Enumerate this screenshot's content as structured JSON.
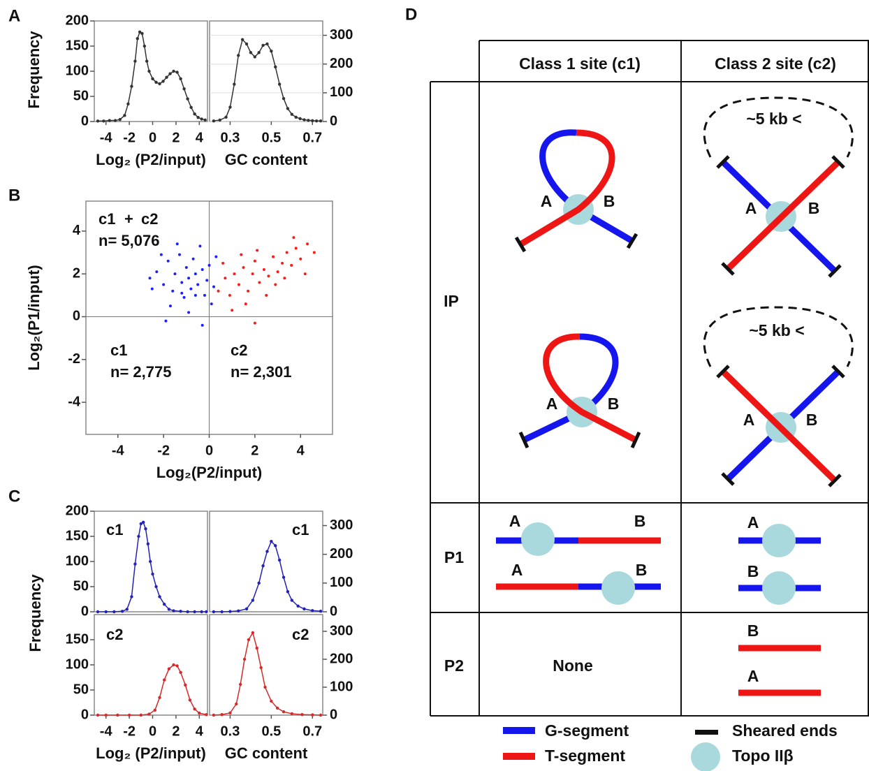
{
  "chart_data": [
    {
      "type": "line",
      "panel": "A",
      "ylabel": "Frequency",
      "xlabel": "Log₂ (P2/input)",
      "color": "#333333",
      "xlim": [
        -5,
        4.7
      ],
      "ylim": [
        0,
        200
      ],
      "xticks": [
        -4,
        -2,
        0,
        2,
        4
      ],
      "yticks": [
        0,
        50,
        100,
        150,
        200
      ],
      "series": [
        {
          "color": "#333333",
          "x": [
            -4.7,
            -4.2,
            -3.7,
            -3.2,
            -2.8,
            -2.4,
            -2.1,
            -1.8,
            -1.5,
            -1.3,
            -1.1,
            -0.9,
            -0.7,
            -0.5,
            -0.3,
            0,
            0.3,
            0.6,
            0.9,
            1.2,
            1.5,
            1.8,
            2.1,
            2.4,
            2.7,
            3.0,
            3.3,
            3.6,
            3.9,
            4.2,
            4.5
          ],
          "values": [
            1,
            1,
            2,
            2,
            4,
            12,
            35,
            70,
            120,
            165,
            178,
            175,
            150,
            120,
            100,
            85,
            78,
            75,
            80,
            88,
            95,
            100,
            98,
            85,
            65,
            45,
            28,
            15,
            8,
            5,
            3
          ]
        }
      ]
    },
    {
      "type": "line",
      "xlabel": "GC content",
      "grid": true,
      "xlim": [
        0.2,
        0.75
      ],
      "ylim": [
        0,
        350
      ],
      "xticks": [
        0.3,
        0.5,
        0.7
      ],
      "yticks": [
        0,
        100,
        200,
        300
      ],
      "series": [
        {
          "color": "#333333",
          "x": [
            0.22,
            0.25,
            0.28,
            0.3,
            0.32,
            0.34,
            0.36,
            0.38,
            0.4,
            0.42,
            0.44,
            0.46,
            0.48,
            0.5,
            0.52,
            0.54,
            0.56,
            0.58,
            0.6,
            0.62,
            0.64,
            0.66,
            0.68,
            0.7,
            0.72,
            0.74
          ],
          "values": [
            2,
            5,
            15,
            50,
            130,
            230,
            285,
            270,
            240,
            225,
            240,
            265,
            270,
            245,
            190,
            130,
            80,
            45,
            25,
            15,
            10,
            6,
            4,
            3,
            2,
            2
          ]
        }
      ]
    },
    {
      "type": "scatter",
      "panel": "B",
      "xlabel": "Log₂(P2/input)",
      "ylabel": "Log₂(P1/input)",
      "xlim": [
        -5.4,
        5.4
      ],
      "ylim": [
        -5.5,
        5.4
      ],
      "xticks": [
        -4,
        -2,
        0,
        2,
        4
      ],
      "yticks": [
        -4,
        -2,
        0,
        2,
        4
      ],
      "annotations": [
        {
          "text": "c1",
          "color": "#1a1aff"
        },
        {
          "text": "+",
          "color": "#111111"
        },
        {
          "text": "c2",
          "color": "#ee1c1c"
        },
        {
          "text": "n= 5,076",
          "color": "#111111"
        },
        {
          "text": "c1",
          "color": "#1a1aff"
        },
        {
          "text": "n= 2,775",
          "color": "#1a1aff"
        },
        {
          "text": "c2",
          "color": "#ee1c1c"
        },
        {
          "text": "n= 2,301",
          "color": "#ee1c1c"
        }
      ],
      "series": [
        {
          "color": "#1f1fff",
          "x": [
            -2.3,
            -2.0,
            -1.8,
            -1.6,
            -1.5,
            -1.3,
            -1.2,
            -1.1,
            -1.0,
            -0.9,
            -0.8,
            -0.7,
            -0.6,
            -0.5,
            -0.4,
            -0.3,
            -0.2,
            -0.1,
            0.0,
            0.2,
            -1.7,
            -2.5,
            -1.4,
            -0.9,
            -0.3,
            -1.9,
            0.3,
            -2.1,
            -1.2,
            -0.6,
            0.1,
            -2.6
          ],
          "values": [
            2.1,
            1.5,
            2.6,
            1.2,
            2.0,
            2.9,
            1.6,
            0.9,
            2.3,
            1.8,
            1.3,
            2.7,
            2.0,
            1.5,
            3.3,
            2.2,
            1.0,
            1.7,
            2.4,
            1.4,
            0.5,
            1.3,
            3.4,
            0.2,
            -0.4,
            -0.2,
            2.8,
            2.9,
            1.1,
            1.0,
            0.6,
            1.8
          ]
        },
        {
          "color": "#ff1a1a",
          "x": [
            0.4,
            0.7,
            0.9,
            1.1,
            1.3,
            1.5,
            1.7,
            1.9,
            2.0,
            2.2,
            2.4,
            2.6,
            2.8,
            3.0,
            3.2,
            3.4,
            3.6,
            3.8,
            4.0,
            4.3,
            4.6,
            1.0,
            1.6,
            2.1,
            2.5,
            2.9,
            3.3,
            0.6,
            2.0,
            4.2,
            1.4,
            3.7
          ],
          "values": [
            1.2,
            1.8,
            1.0,
            2.0,
            1.5,
            2.3,
            1.2,
            2.0,
            2.6,
            1.6,
            2.2,
            1.9,
            2.8,
            2.1,
            2.5,
            3.0,
            2.4,
            3.2,
            2.7,
            3.4,
            3.0,
            0.3,
            0.6,
            3.1,
            1.0,
            1.5,
            1.8,
            2.5,
            -0.3,
            2.0,
            2.9,
            3.7
          ]
        }
      ]
    },
    {
      "type": "line",
      "panel": "C",
      "ylabel": "Frequency",
      "xlim": [
        -5,
        4.7
      ],
      "ylim": [
        0,
        200
      ],
      "yticks": [
        0,
        50,
        100,
        150,
        200
      ],
      "annotations": [
        {
          "text": "c1",
          "color": "#1a1aff"
        }
      ],
      "series": [
        {
          "color": "#2222b8",
          "x": [
            -4.7,
            -4,
            -3.3,
            -2.6,
            -2.2,
            -1.8,
            -1.5,
            -1.2,
            -1,
            -0.8,
            -0.6,
            -0.4,
            -0.2,
            0,
            0.3,
            0.6,
            1,
            1.4,
            1.8,
            2.4,
            3,
            3.6,
            4.2,
            4.6
          ],
          "values": [
            0,
            0,
            0,
            1,
            5,
            30,
            95,
            150,
            175,
            178,
            165,
            135,
            100,
            75,
            50,
            30,
            15,
            5,
            2,
            1,
            0,
            0,
            0,
            0
          ]
        }
      ]
    },
    {
      "type": "line",
      "xlim": [
        0.2,
        0.75
      ],
      "ylim": [
        0,
        350
      ],
      "yticks": [
        0,
        100,
        200,
        300
      ],
      "annotations": [
        {
          "text": "c1",
          "color": "#1a1aff"
        }
      ],
      "series": [
        {
          "color": "#2222b8",
          "x": [
            0.22,
            0.26,
            0.3,
            0.34,
            0.38,
            0.41,
            0.44,
            0.46,
            0.48,
            0.5,
            0.52,
            0.54,
            0.56,
            0.58,
            0.6,
            0.63,
            0.66,
            0.7,
            0.74
          ],
          "values": [
            0,
            0,
            1,
            3,
            10,
            40,
            100,
            160,
            210,
            245,
            230,
            180,
            120,
            70,
            40,
            20,
            10,
            4,
            2
          ]
        }
      ]
    },
    {
      "type": "line",
      "xlabel": "Log₂ (P2/input)",
      "xlim": [
        -5,
        4.7
      ],
      "ylim": [
        0,
        200
      ],
      "xticks": [
        -4,
        -2,
        0,
        2,
        4
      ],
      "yticks": [
        0,
        50,
        100,
        150
      ],
      "annotations": [
        {
          "text": "c2",
          "color": "#ee1c1c"
        }
      ],
      "series": [
        {
          "color": "#d42a2a",
          "x": [
            -4.7,
            -4,
            -3,
            -2,
            -1,
            -0.3,
            0.2,
            0.6,
            1,
            1.4,
            1.8,
            2.1,
            2.4,
            2.8,
            3.2,
            3.6,
            4,
            4.6
          ],
          "values": [
            0,
            0,
            0,
            0,
            0,
            2,
            10,
            35,
            70,
            92,
            100,
            98,
            85,
            60,
            30,
            12,
            4,
            1
          ]
        }
      ]
    },
    {
      "type": "line",
      "xlabel": "GC content",
      "xlim": [
        0.2,
        0.75
      ],
      "ylim": [
        0,
        360
      ],
      "xticks": [
        0.3,
        0.5,
        0.7
      ],
      "yticks": [
        0,
        100,
        200,
        300
      ],
      "annotations": [
        {
          "text": "c2",
          "color": "#ee1c1c"
        }
      ],
      "series": [
        {
          "color": "#d42a2a",
          "x": [
            0.22,
            0.26,
            0.3,
            0.33,
            0.35,
            0.37,
            0.39,
            0.41,
            0.43,
            0.45,
            0.47,
            0.5,
            0.53,
            0.56,
            0.6,
            0.65,
            0.7,
            0.74
          ],
          "values": [
            0,
            2,
            8,
            40,
            110,
            200,
            270,
            295,
            240,
            170,
            100,
            50,
            25,
            12,
            5,
            2,
            1,
            0
          ]
        }
      ]
    }
  ],
  "diagram": {
    "panel": "D",
    "columns": [
      "Class 1 site (c1)",
      "Class 2 site (c2)"
    ],
    "rows": [
      "IP",
      "P1",
      "P2"
    ],
    "ip": {
      "c1": [
        [
          "A",
          "B"
        ],
        [
          "A",
          "B"
        ]
      ],
      "c2": [
        {
          "loop": "~5 kb <",
          "ends": [
            "A",
            "B"
          ]
        },
        {
          "loop": "~5 kb <",
          "ends": [
            "A",
            "B"
          ]
        }
      ]
    },
    "p1": {
      "c1": [
        [
          "A",
          "B"
        ],
        [
          "A",
          "B"
        ]
      ],
      "c2": [
        "A",
        "B"
      ]
    },
    "p2": {
      "c1": "None",
      "c2": [
        "B",
        "A"
      ]
    },
    "legend": [
      "G-segment",
      "T-segment",
      "Sheared ends",
      "Topo IIβ"
    ]
  }
}
